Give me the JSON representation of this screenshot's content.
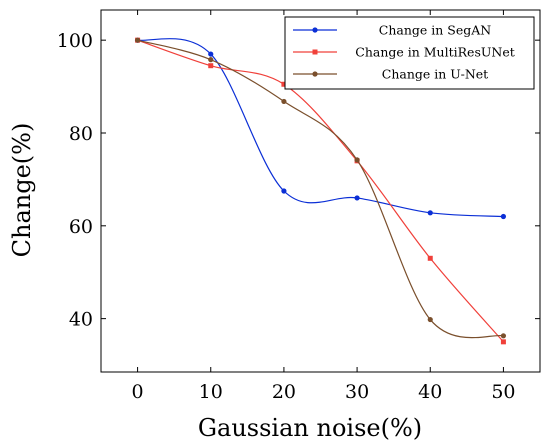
{
  "chart_data": {
    "type": "line",
    "title": "",
    "xlabel": "Gaussian noise(%)",
    "ylabel": "Change(%)",
    "x": [
      0,
      10,
      20,
      30,
      40,
      50
    ],
    "xlim": [
      -5,
      55
    ],
    "ylim": [
      28.5,
      106.5
    ],
    "xticks": [
      0,
      10,
      20,
      30,
      40,
      50
    ],
    "yticks": [
      40,
      60,
      80,
      100
    ],
    "grid": false,
    "legend_position": "top-right",
    "series": [
      {
        "name": "Change in SegAN",
        "color": "#0b2fd6",
        "marker": "circle",
        "values": [
          100,
          97,
          67.5,
          66,
          62.8,
          62
        ]
      },
      {
        "name": "Change in MultiResUNet",
        "color": "#f0403a",
        "marker": "square",
        "values": [
          100,
          94.5,
          90.5,
          74,
          53,
          35
        ]
      },
      {
        "name": "Change in U-Net",
        "color": "#7a4f2c",
        "marker": "circle",
        "values": [
          100,
          95.8,
          86.8,
          74.2,
          39.8,
          36.3
        ]
      }
    ]
  }
}
